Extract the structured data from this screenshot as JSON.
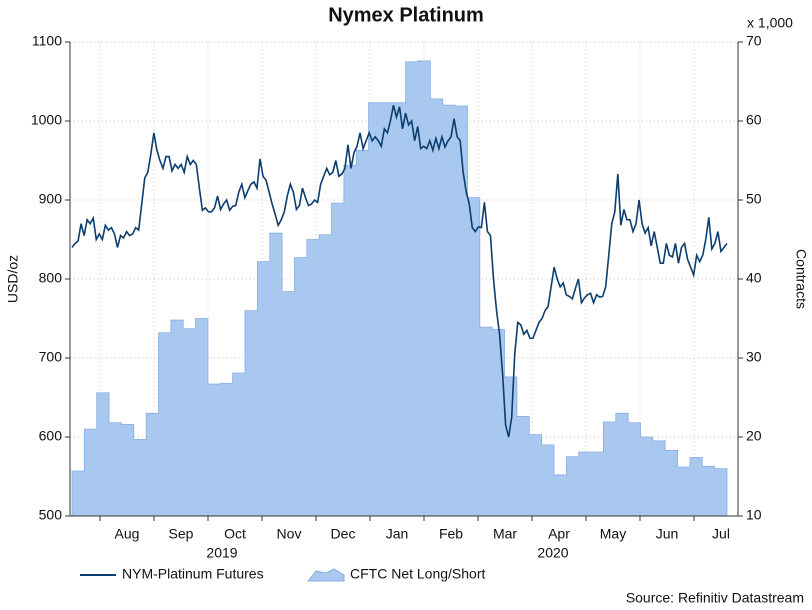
{
  "chart_data": {
    "type": "line",
    "title": "Nymex Platinum",
    "y_label": "USD/oz",
    "y2_label": "Contracts",
    "y2_unit": "x 1,000",
    "source": "Source: Refinitiv Datastream",
    "months": [
      "Aug",
      "Sep",
      "Oct",
      "Nov",
      "Dec",
      "Jan",
      "Feb",
      "Mar",
      "Apr",
      "May",
      "Jun",
      "Jul"
    ],
    "years": [
      "2019",
      "2020"
    ],
    "ylim": [
      500,
      1100
    ],
    "yticks": [
      500,
      600,
      700,
      800,
      900,
      1000,
      1100
    ],
    "y2lim": [
      10,
      70
    ],
    "y2ticks": [
      10,
      20,
      30,
      40,
      50,
      60,
      70
    ],
    "grid": true,
    "series": [
      {
        "name": "NYM-Platinum Futures",
        "color": "#0b3d6f",
        "style": "line",
        "values": [
          840,
          845,
          848,
          870,
          855,
          875,
          870,
          877,
          850,
          857,
          850,
          868,
          862,
          865,
          857,
          840,
          855,
          852,
          860,
          855,
          857,
          865,
          862,
          895,
          928,
          935,
          958,
          985,
          963,
          950,
          940,
          955,
          955,
          937,
          945,
          940,
          945,
          935,
          955,
          945,
          950,
          945,
          915,
          887,
          890,
          885,
          885,
          890,
          905,
          888,
          895,
          900,
          887,
          892,
          893,
          910,
          920,
          903,
          912,
          920,
          923,
          915,
          952,
          930,
          925,
          910,
          895,
          882,
          868,
          875,
          885,
          905,
          920,
          910,
          888,
          893,
          915,
          903,
          893,
          895,
          900,
          897,
          920,
          930,
          940,
          932,
          935,
          950,
          930,
          933,
          940,
          970,
          940,
          960,
          968,
          985,
          965,
          975,
          985,
          975,
          980,
          975,
          968,
          990,
          985,
          1000,
          1020,
          1005,
          1018,
          990,
          1010,
          995,
          1000,
          975,
          993,
          965,
          968,
          965,
          975,
          963,
          978,
          965,
          980,
          967,
          975,
          980,
          1003,
          980,
          975,
          935,
          910,
          895,
          865,
          860,
          866,
          865,
          897,
          860,
          855,
          800,
          760,
          730,
          680,
          615,
          600,
          625,
          705,
          745,
          742,
          730,
          735,
          725,
          725,
          735,
          745,
          750,
          760,
          765,
          790,
          815,
          800,
          790,
          795,
          780,
          778,
          775,
          788,
          800,
          770,
          776,
          780,
          782,
          770,
          780,
          777,
          778,
          790,
          830,
          870,
          885,
          933,
          868,
          888,
          875,
          875,
          860,
          870,
          900,
          870,
          858,
          865,
          842,
          860,
          840,
          820,
          820,
          845,
          830,
          828,
          845,
          820,
          840,
          845,
          825,
          815,
          805,
          830,
          822,
          830,
          850,
          878,
          838,
          845,
          860,
          835,
          840,
          845
        ]
      },
      {
        "name": "CFTC Net Long/Short",
        "color": "#a9c8ef",
        "style": "area",
        "axis": "y2",
        "values": [
          15.7,
          21,
          25.6,
          21.8,
          21.6,
          19.7,
          23,
          33.2,
          34.8,
          33.7,
          35,
          26.7,
          26.8,
          28.1,
          36,
          42.2,
          45.8,
          38.4,
          42.7,
          45,
          45.6,
          49.6,
          54.4,
          56.3,
          62.3,
          62.3,
          62.3,
          67.5,
          67.6,
          62.8,
          62,
          61.9,
          50.3,
          33.9,
          33.6,
          27.6,
          22.6,
          20.3,
          19,
          15.2,
          17.5,
          18.1,
          18.1,
          21.9,
          23,
          21.8,
          20,
          19.5,
          18.3,
          16.2,
          17.4,
          16.3,
          16
        ]
      }
    ]
  }
}
